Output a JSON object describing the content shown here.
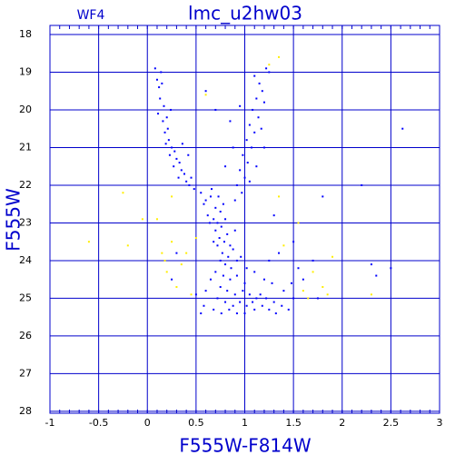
{
  "chart_data": {
    "type": "scatter",
    "title": "lmc_u2hw03",
    "annotation": "WF4",
    "x_label": "F555W-F814W",
    "y_label": "F555W",
    "xlim": [
      -1,
      3
    ],
    "ylim": [
      28.05,
      17.76
    ],
    "xticks": [
      -1,
      -0.5,
      0,
      0.5,
      1,
      1.5,
      2,
      2.5,
      3
    ],
    "yticks": [
      18,
      19,
      20,
      21,
      22,
      23,
      24,
      25,
      26,
      27,
      28
    ],
    "grid": true,
    "axis_color": "#0000cc",
    "series": [
      {
        "color": "#0000ff",
        "x": [
          0.08,
          0.1,
          0.12,
          0.15,
          0.13,
          0.17,
          0.11,
          0.16,
          0.2,
          0.18,
          0.22,
          0.19,
          0.25,
          0.23,
          0.28,
          0.3,
          0.27,
          0.33,
          0.35,
          0.38,
          0.32,
          0.4,
          0.43,
          0.45,
          0.48,
          0.21,
          0.14,
          0.24,
          0.36,
          0.42,
          1.1,
          1.15,
          1.18,
          1.12,
          1.2,
          1.22,
          1.25,
          1.08,
          1.14,
          1.05,
          1.1,
          1.02,
          1.07,
          0.98,
          1.03,
          0.95,
          1.0,
          0.92,
          0.97,
          0.9,
          1.17,
          1.2,
          1.12,
          1.05,
          0.88,
          0.85,
          0.6,
          0.7,
          0.95,
          0.8,
          0.55,
          0.6,
          0.65,
          0.7,
          0.62,
          0.68,
          0.72,
          0.75,
          0.58,
          0.66,
          0.73,
          0.78,
          0.8,
          0.7,
          0.76,
          0.82,
          0.74,
          0.79,
          0.85,
          0.72,
          0.77,
          0.83,
          0.88,
          0.75,
          0.8,
          0.86,
          0.92,
          0.68,
          0.64,
          0.9,
          0.7,
          0.78,
          0.85,
          0.92,
          1.0,
          0.75,
          0.82,
          0.9,
          0.98,
          1.05,
          1.12,
          0.72,
          0.8,
          0.88,
          0.95,
          1.02,
          1.1,
          1.18,
          1.25,
          1.32,
          0.68,
          0.76,
          0.84,
          0.92,
          1.0,
          1.08,
          1.16,
          1.22,
          1.3,
          1.38,
          1.45,
          1.5,
          1.4,
          1.28,
          1.2,
          1.1,
          1.02,
          0.96,
          0.6,
          0.58,
          0.65,
          1.48,
          1.55,
          1.6,
          1.7,
          1.75,
          1.35,
          1.25,
          0.5,
          0.55,
          2.2,
          2.3,
          2.35,
          2.5,
          2.62,
          1.8,
          1.3,
          1.5,
          0.3,
          0.25
        ],
        "values": [
          18.9,
          19.2,
          19.4,
          19.3,
          19.7,
          19.9,
          20.1,
          20.3,
          20.2,
          20.6,
          20.8,
          20.9,
          21.0,
          21.2,
          21.1,
          21.3,
          21.5,
          21.4,
          21.6,
          21.7,
          21.8,
          21.9,
          22.0,
          21.8,
          22.1,
          20.5,
          19.0,
          20.0,
          20.9,
          21.2,
          19.1,
          19.3,
          19.5,
          19.7,
          19.8,
          18.9,
          19.0,
          20.0,
          20.2,
          20.4,
          20.6,
          20.8,
          21.0,
          21.2,
          21.4,
          21.6,
          21.8,
          22.0,
          22.2,
          22.4,
          20.5,
          21.0,
          21.5,
          21.9,
          21.0,
          20.3,
          19.5,
          20.0,
          19.9,
          21.5,
          22.2,
          22.4,
          22.3,
          22.6,
          22.8,
          22.9,
          23.0,
          22.7,
          22.5,
          22.1,
          22.3,
          22.5,
          22.9,
          23.2,
          23.1,
          23.3,
          23.4,
          23.5,
          23.6,
          23.6,
          23.8,
          23.9,
          23.7,
          24.0,
          24.1,
          24.2,
          24.0,
          23.5,
          23.0,
          23.2,
          24.3,
          24.4,
          24.5,
          24.4,
          24.6,
          24.7,
          24.8,
          24.9,
          24.8,
          24.9,
          25.0,
          25.0,
          25.1,
          25.2,
          25.1,
          25.2,
          25.3,
          25.2,
          25.3,
          25.4,
          25.3,
          25.4,
          25.3,
          25.4,
          25.4,
          25.1,
          24.9,
          25.0,
          25.1,
          25.2,
          25.3,
          25.0,
          24.8,
          24.6,
          24.5,
          24.3,
          24.2,
          23.9,
          24.8,
          25.2,
          24.5,
          24.6,
          24.2,
          24.5,
          24.0,
          25.0,
          23.8,
          24.0,
          24.9,
          25.4,
          22.0,
          24.1,
          24.4,
          24.2,
          20.5,
          22.3,
          22.8,
          23.5,
          23.8,
          24.5
        ]
      },
      {
        "color": "#ffee00",
        "x": [
          1.25,
          1.35,
          0.6,
          -0.2,
          -0.25,
          -0.6,
          -0.05,
          0.1,
          0.15,
          0.18,
          0.2,
          0.25,
          0.3,
          0.35,
          0.4,
          0.5,
          0.45,
          0.25,
          1.4,
          1.55,
          1.6,
          1.7,
          1.8,
          1.85,
          1.9,
          2.3,
          1.35,
          1.65
        ],
        "values": [
          18.8,
          18.6,
          19.6,
          23.6,
          22.2,
          23.5,
          22.9,
          22.9,
          23.8,
          24.0,
          24.3,
          23.5,
          24.7,
          24.1,
          23.8,
          23.4,
          24.9,
          22.3,
          23.6,
          23.0,
          24.8,
          24.3,
          24.7,
          24.9,
          23.9,
          24.9,
          22.3,
          25.0
        ]
      }
    ]
  }
}
